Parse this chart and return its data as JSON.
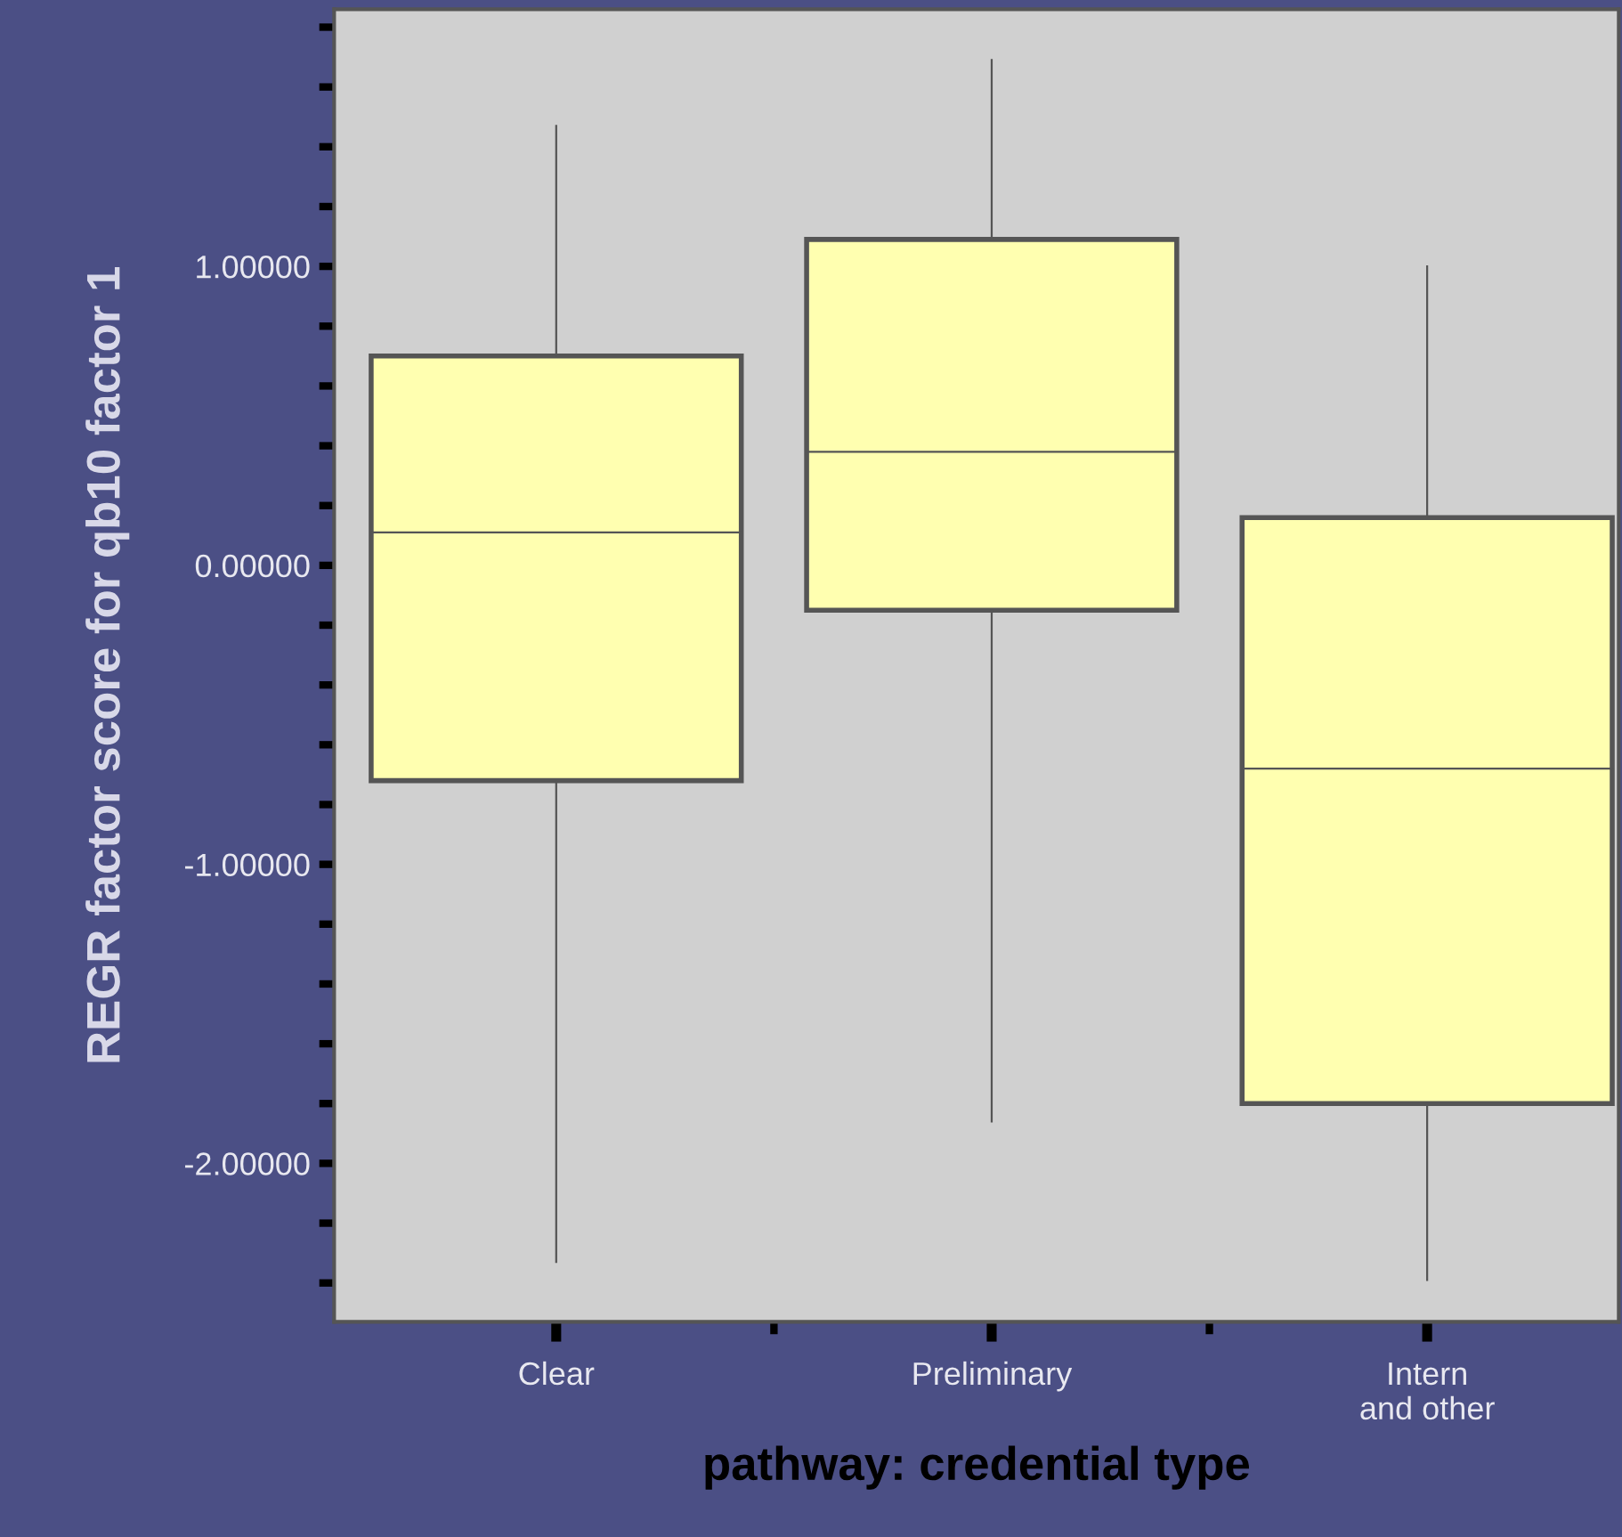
{
  "chart_data": {
    "type": "box",
    "xlabel": "pathway: credential type",
    "ylabel": "REGR factor score for qb10 factor 1",
    "categories": [
      "Clear",
      "Preliminary",
      "Intern\nand other"
    ],
    "boxes": [
      {
        "low": -2.33,
        "q1": -0.72,
        "median": 0.11,
        "q3": 0.7,
        "high": 1.47
      },
      {
        "low": -1.86,
        "q1": -0.15,
        "median": 0.38,
        "q3": 1.09,
        "high": 1.69
      },
      {
        "low": -2.39,
        "q1": -1.8,
        "median": -0.68,
        "q3": 0.16,
        "high": 1.0
      }
    ],
    "color": "#ffffb0",
    "ylim": [
      -2.53,
      1.86
    ],
    "yticks": [
      {
        "value": 1.8,
        "label": null
      },
      {
        "value": 1.6,
        "label": null
      },
      {
        "value": 1.4,
        "label": null
      },
      {
        "value": 1.2,
        "label": null
      },
      {
        "value": 1,
        "label": "1.00000"
      },
      {
        "value": 0.8,
        "label": null
      },
      {
        "value": 0.6,
        "label": null
      },
      {
        "value": 0.4,
        "label": null
      },
      {
        "value": 0.2,
        "label": null
      },
      {
        "value": 0,
        "label": "0.00000"
      },
      {
        "value": -0.2,
        "label": null
      },
      {
        "value": -0.4,
        "label": null
      },
      {
        "value": -0.6,
        "label": null
      },
      {
        "value": -0.8,
        "label": null
      },
      {
        "value": -1,
        "label": "-1.00000"
      },
      {
        "value": -1.2,
        "label": null
      },
      {
        "value": -1.4,
        "label": null
      },
      {
        "value": -1.6,
        "label": null
      },
      {
        "value": -1.8,
        "label": null
      },
      {
        "value": -2,
        "label": "-2.00000"
      },
      {
        "value": -2.2,
        "label": null
      },
      {
        "value": -2.4,
        "label": null
      }
    ],
    "grid": false,
    "legend": false
  }
}
